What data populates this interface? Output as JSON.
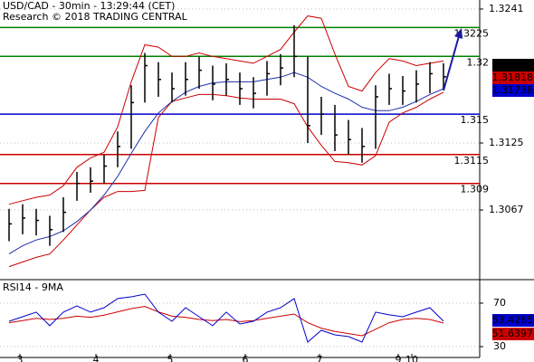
{
  "chart_data": {
    "type": "ohlc",
    "title": "USD/CAD - 30min - 13:29:44 (CET)",
    "subtitle": "Research © 2018 TRADING CENTRAL",
    "x": [
      0,
      1,
      2,
      3,
      4,
      5,
      6,
      7,
      8,
      9,
      10,
      11,
      12,
      13,
      14,
      15,
      16,
      17,
      18,
      19,
      20,
      21,
      22,
      23,
      24,
      25,
      26,
      27,
      28,
      29,
      30,
      31,
      32
    ],
    "high": [
      1.3068,
      1.3072,
      1.3068,
      1.3062,
      1.3078,
      1.31,
      1.3104,
      1.3115,
      1.3135,
      1.3175,
      1.3203,
      1.3195,
      1.3186,
      1.3195,
      1.32,
      1.3192,
      1.3194,
      1.3186,
      1.3182,
      1.3196,
      1.3202,
      1.3227,
      1.32,
      1.3165,
      1.3158,
      1.3145,
      1.3138,
      1.3175,
      1.3185,
      1.3183,
      1.3188,
      1.3195,
      1.3194
    ],
    "low": [
      1.304,
      1.3046,
      1.3045,
      1.3036,
      1.3048,
      1.3075,
      1.3082,
      1.309,
      1.3104,
      1.312,
      1.316,
      1.3165,
      1.316,
      1.3166,
      1.3172,
      1.3162,
      1.3166,
      1.3158,
      1.3155,
      1.3166,
      1.3175,
      1.3182,
      1.3125,
      1.3132,
      1.3118,
      1.3115,
      1.3108,
      1.312,
      1.3158,
      1.3158,
      1.316,
      1.3168,
      1.3172
    ],
    "close": [
      1.3055,
      1.306,
      1.3058,
      1.305,
      1.3065,
      1.309,
      1.3092,
      1.3105,
      1.3122,
      1.316,
      1.3192,
      1.318,
      1.3172,
      1.318,
      1.3188,
      1.3176,
      1.318,
      1.3172,
      1.3168,
      1.3185,
      1.319,
      1.32,
      1.314,
      1.315,
      1.3132,
      1.3128,
      1.3122,
      1.3165,
      1.3172,
      1.317,
      1.3176,
      1.3185,
      1.31823
    ],
    "bar_color": "#000000",
    "ma": {
      "color": "#1f2fa8",
      "values": [
        1.3029,
        1.3036,
        1.3041,
        1.3044,
        1.3049,
        1.3057,
        1.3067,
        1.308,
        1.3096,
        1.3116,
        1.3135,
        1.3151,
        1.3161,
        1.3169,
        1.3174,
        1.3177,
        1.3178,
        1.3178,
        1.3178,
        1.318,
        1.3182,
        1.3186,
        1.3182,
        1.3174,
        1.3168,
        1.3163,
        1.3156,
        1.3153,
        1.3153,
        1.3156,
        1.3161,
        1.3167,
        1.3172
      ]
    },
    "upper_band": {
      "color": "#cc0000",
      "values": [
        1.3072,
        1.3075,
        1.3078,
        1.308,
        1.3088,
        1.3104,
        1.3112,
        1.3117,
        1.3139,
        1.3178,
        1.321,
        1.3208,
        1.32,
        1.32,
        1.3203,
        1.32,
        1.3198,
        1.3196,
        1.3194,
        1.32,
        1.3206,
        1.3221,
        1.3235,
        1.3233,
        1.3202,
        1.3174,
        1.317,
        1.3186,
        1.3198,
        1.3196,
        1.3192,
        1.3194,
        1.3196
      ]
    },
    "lower_band": {
      "color": "#cc0000",
      "values": [
        1.3018,
        1.3022,
        1.3026,
        1.3029,
        1.3041,
        1.3054,
        1.3067,
        1.3078,
        1.3083,
        1.3083,
        1.3084,
        1.3147,
        1.3161,
        1.3164,
        1.3167,
        1.3167,
        1.3166,
        1.3164,
        1.3163,
        1.3163,
        1.3163,
        1.3159,
        1.3139,
        1.3123,
        1.3109,
        1.3108,
        1.3106,
        1.3114,
        1.3143,
        1.3151,
        1.3156,
        1.3163,
        1.3169
      ]
    },
    "levels": [
      {
        "value": 1.3225,
        "color": "#008000"
      },
      {
        "value": 1.32,
        "color": "#008000"
      },
      {
        "value": 1.315,
        "color": "#0000cc"
      },
      {
        "value": 1.3115,
        "color": "#cc0000"
      },
      {
        "value": 1.309,
        "color": "#cc0000"
      }
    ],
    "last_labels": [
      {
        "value": 1.31823,
        "color": "#000000"
      },
      {
        "value": 1.31818,
        "color": "#cc0000"
      },
      {
        "value": 1.31738,
        "color": "#0000cc"
      }
    ],
    "xlim": [
      -0.667,
      34.667
    ],
    "ylim": [
      1.30075,
      1.32488
    ],
    "yticks": [
      1.3241,
      1.3125,
      1.3067
    ],
    "xticks": [
      {
        "value": 0.8,
        "label": "3"
      },
      {
        "value": 6.4,
        "label": "4"
      },
      {
        "value": 11.87,
        "label": "5"
      },
      {
        "value": 17.4,
        "label": "6"
      },
      {
        "value": 22.87,
        "label": "7"
      },
      {
        "value": 28.67,
        "label": "9"
      },
      {
        "value": 29.67,
        "label": "10"
      }
    ],
    "rsi": {
      "title": "RSI14 - 9MA",
      "ylim": [
        20,
        90.8
      ],
      "yticks": [
        70,
        30
      ],
      "rsi": {
        "color": "#0000cc",
        "values": [
          53.3,
          57.5,
          61.7,
          49.2,
          61.7,
          67.5,
          61.7,
          65.8,
          74.2,
          75.8,
          78.3,
          61.7,
          53.3,
          65.8,
          57.5,
          49.2,
          61.7,
          50.8,
          53.3,
          61.7,
          65.8,
          74.2,
          34.2,
          45,
          40.8,
          39.2,
          34.2,
          61.7,
          59.2,
          57.5,
          61.7,
          65.8,
          53.4265
        ]
      },
      "ma": {
        "color": "#cc0000",
        "values": [
          52,
          54,
          56,
          55,
          56,
          58,
          57,
          59,
          62,
          65,
          67,
          62,
          58,
          57,
          55,
          54,
          55,
          53,
          54,
          56,
          58,
          60,
          52,
          47,
          44,
          42,
          40,
          46,
          52,
          55,
          56,
          55,
          51.6397
        ]
      },
      "last_labels": [
        {
          "value": 53.4265,
          "color": "#0000cc"
        },
        {
          "value": 51.6397,
          "color": "#cc0000"
        }
      ]
    }
  }
}
